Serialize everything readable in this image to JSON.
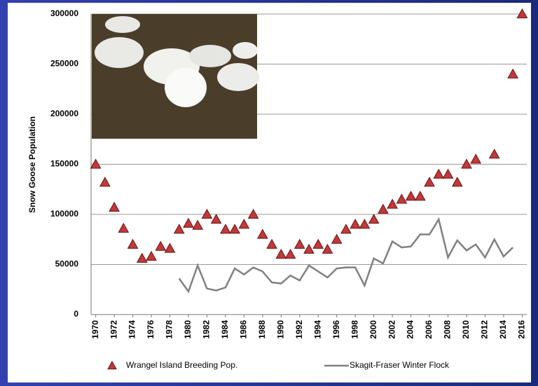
{
  "chart_data": {
    "type": "line",
    "y_label": "Snow Goose Population",
    "xlim": [
      1969.5,
      2016.5
    ],
    "xticks": [
      1970,
      1972,
      1974,
      1976,
      1978,
      1980,
      1982,
      1984,
      1986,
      1988,
      1990,
      1992,
      1994,
      1996,
      1998,
      2000,
      2002,
      2004,
      2006,
      2008,
      2010,
      2012,
      2014,
      2016
    ],
    "ylim": [
      0,
      300000
    ],
    "yticks": [
      0,
      50000,
      100000,
      150000,
      200000,
      250000,
      300000
    ],
    "grid": true,
    "legend": "bottom",
    "series": [
      {
        "name": "Wrangel Island Breeding Pop.",
        "type": "scatter",
        "marker": "triangle",
        "color": "#c0393b",
        "x": [
          1970,
          1971,
          1972,
          1973,
          1974,
          1975,
          1976,
          1977,
          1978,
          1979,
          1980,
          1981,
          1982,
          1983,
          1984,
          1985,
          1986,
          1987,
          1988,
          1989,
          1990,
          1991,
          1992,
          1993,
          1994,
          1995,
          1996,
          1997,
          1998,
          1999,
          2000,
          2001,
          2002,
          2003,
          2004,
          2005,
          2006,
          2007,
          2008,
          2009,
          2010,
          2011,
          2013,
          2015,
          2016
        ],
        "values": [
          150000,
          132000,
          107000,
          86000,
          70000,
          56000,
          58000,
          68000,
          66000,
          85000,
          91000,
          89000,
          100000,
          95000,
          85000,
          85000,
          90000,
          100000,
          80000,
          70000,
          60000,
          60000,
          70000,
          65000,
          70000,
          65000,
          75000,
          85000,
          90000,
          90000,
          95000,
          105000,
          110000,
          115000,
          118000,
          118000,
          132000,
          140000,
          140000,
          132000,
          150000,
          155000,
          160000,
          240000,
          300000
        ]
      },
      {
        "name": "Skagit-Fraser Winter Flock",
        "type": "line",
        "color": "#808080",
        "x": [
          1979,
          1980,
          1981,
          1982,
          1983,
          1984,
          1985,
          1986,
          1987,
          1988,
          1989,
          1990,
          1991,
          1992,
          1993,
          1994,
          1995,
          1996,
          1997,
          1998,
          1999,
          2000,
          2001,
          2002,
          2003,
          2004,
          2005,
          2006,
          2007,
          2008,
          2009,
          2010,
          2011,
          2012,
          2013,
          2014,
          2015
        ],
        "values": [
          36000,
          23000,
          49000,
          26000,
          24000,
          27000,
          46000,
          40000,
          47000,
          43000,
          32000,
          31000,
          39000,
          34000,
          49000,
          43000,
          37000,
          46000,
          47000,
          47000,
          29000,
          56000,
          51000,
          73000,
          67000,
          68000,
          80000,
          80000,
          95000,
          57000,
          74000,
          64000,
          70000,
          57000,
          75000,
          58000,
          67000
        ]
      }
    ]
  }
}
